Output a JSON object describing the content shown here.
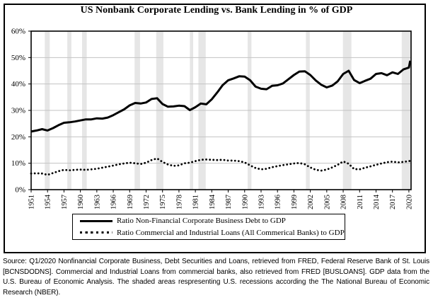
{
  "title": "US Nonbank Corporate Lending vs. Bank Lending in % of GDP",
  "legend": {
    "items": [
      {
        "style": "solid",
        "label": "Ratio Non-Financial Corporate Business Debt to GDP"
      },
      {
        "style": "dotted",
        "label": "Ratio Commercial and Industrial Loans (All Commerical Banks) to GDP"
      }
    ]
  },
  "source_note": "Source: Q1/2020 Nonfinancial Corporate Business, Debt Securities and Loans, retrieved from FRED, Federal Reserve Bank of St. Louis [BCNSDODNS]. Commercial and Industrial Loans from commercial banks, also retrieved from FRED [BUSLOANS]. GDP data from the U.S. Bureau of Economic Analysis. The shaded areas respresenting U.S. recessions according the The National Bureau of Economic Research (NBER).",
  "chart_data": {
    "type": "line",
    "title": "US Nonbank Corporate Lending vs. Bank Lending in % of GDP",
    "xlabel": "",
    "ylabel": "",
    "xlim": [
      1951,
      2020.4
    ],
    "ylim": [
      0,
      60
    ],
    "grid": "horizontal",
    "legend_position": "bottom",
    "x_ticks": [
      1951,
      1954,
      1957,
      1960,
      1963,
      1966,
      1969,
      1972,
      1975,
      1978,
      1981,
      1984,
      1987,
      1990,
      1993,
      1996,
      1999,
      2002,
      2005,
      2008,
      2011,
      2014,
      2017,
      2020
    ],
    "x_tick_labels": [
      "1951",
      "1954",
      "1957",
      "1960",
      "1963",
      "1966",
      "1969",
      "1972",
      "1975",
      "1978",
      "1981",
      "1984",
      "1987",
      "1990",
      "1993",
      "1996",
      "1999",
      "2002",
      "2005",
      "2008",
      "2011",
      "2014",
      "2017",
      "2020"
    ],
    "y_ticks": [
      0,
      10,
      20,
      30,
      40,
      50,
      60
    ],
    "y_tick_labels": [
      "0%",
      "10%",
      "20%",
      "30%",
      "40%",
      "50%",
      "60%"
    ],
    "x": [
      1951,
      1952,
      1953,
      1954,
      1955,
      1956,
      1957,
      1958,
      1959,
      1960,
      1961,
      1962,
      1963,
      1964,
      1965,
      1966,
      1967,
      1968,
      1969,
      1970,
      1971,
      1972,
      1973,
      1974,
      1975,
      1976,
      1977,
      1978,
      1979,
      1980,
      1981,
      1982,
      1983,
      1984,
      1985,
      1986,
      1987,
      1988,
      1989,
      1990,
      1991,
      1992,
      1993,
      1994,
      1995,
      1996,
      1997,
      1998,
      1999,
      2000,
      2001,
      2002,
      2003,
      2004,
      2005,
      2006,
      2007,
      2008,
      2009,
      2010,
      2011,
      2012,
      2013,
      2014,
      2015,
      2016,
      2017,
      2018,
      2019,
      2020,
      2020.25
    ],
    "series": [
      {
        "name": "Ratio Non-Financial Corporate Business Debt to GDP",
        "style": "solid",
        "values": [
          22.0,
          22.4,
          22.9,
          22.4,
          23.3,
          24.4,
          25.3,
          25.5,
          25.8,
          26.2,
          26.6,
          26.6,
          27.0,
          26.9,
          27.3,
          28.2,
          29.3,
          30.4,
          31.9,
          32.8,
          32.6,
          33.0,
          34.3,
          34.6,
          32.4,
          31.4,
          31.5,
          31.8,
          31.6,
          30.1,
          31.2,
          32.6,
          32.3,
          34.2,
          36.8,
          39.6,
          41.4,
          42.1,
          42.9,
          42.8,
          41.4,
          39.0,
          38.2,
          38.0,
          39.3,
          39.5,
          40.2,
          41.8,
          43.4,
          44.7,
          44.8,
          43.4,
          41.3,
          39.7,
          38.7,
          39.4,
          41.0,
          43.8,
          45.0,
          41.5,
          40.3,
          41.2,
          42.0,
          43.8,
          44.1,
          43.3,
          44.4,
          43.8,
          45.5,
          46.2,
          48.8
        ]
      },
      {
        "name": "Ratio Commercial and Industrial Loans (All Commerical Banks) to GDP",
        "style": "dotted",
        "values": [
          6.1,
          6.2,
          6.1,
          5.6,
          6.3,
          7.0,
          7.5,
          7.3,
          7.5,
          7.6,
          7.5,
          7.7,
          7.9,
          8.3,
          8.7,
          9.1,
          9.6,
          9.9,
          10.2,
          10.0,
          9.7,
          10.2,
          11.2,
          11.8,
          10.5,
          9.5,
          9.0,
          9.2,
          10.0,
          10.2,
          10.8,
          11.3,
          11.4,
          11.3,
          11.2,
          11.3,
          11.0,
          11.0,
          10.8,
          10.3,
          9.2,
          8.2,
          7.7,
          7.9,
          8.5,
          8.9,
          9.3,
          9.6,
          9.9,
          10.1,
          9.6,
          8.4,
          7.5,
          7.2,
          7.6,
          8.4,
          9.4,
          10.7,
          9.8,
          7.8,
          7.7,
          8.3,
          8.8,
          9.4,
          9.9,
          10.4,
          10.6,
          10.3,
          10.5,
          10.8,
          10.9
        ]
      }
    ],
    "recession_bands": [
      [
        1953.5,
        1954.4
      ],
      [
        1957.6,
        1958.35
      ],
      [
        1960.3,
        1961.15
      ],
      [
        1969.9,
        1970.9
      ],
      [
        1973.85,
        1975.15
      ],
      [
        1980.0,
        1980.6
      ],
      [
        1981.55,
        1982.9
      ],
      [
        1990.55,
        1991.25
      ],
      [
        2001.2,
        2001.9
      ],
      [
        2007.95,
        2009.5
      ],
      [
        2018.7,
        2020.4
      ]
    ],
    "colors": {
      "line": "#000000",
      "recession_band": "#e6e6e6",
      "grid": "#c3c3c3",
      "background": "#ffffff"
    }
  }
}
